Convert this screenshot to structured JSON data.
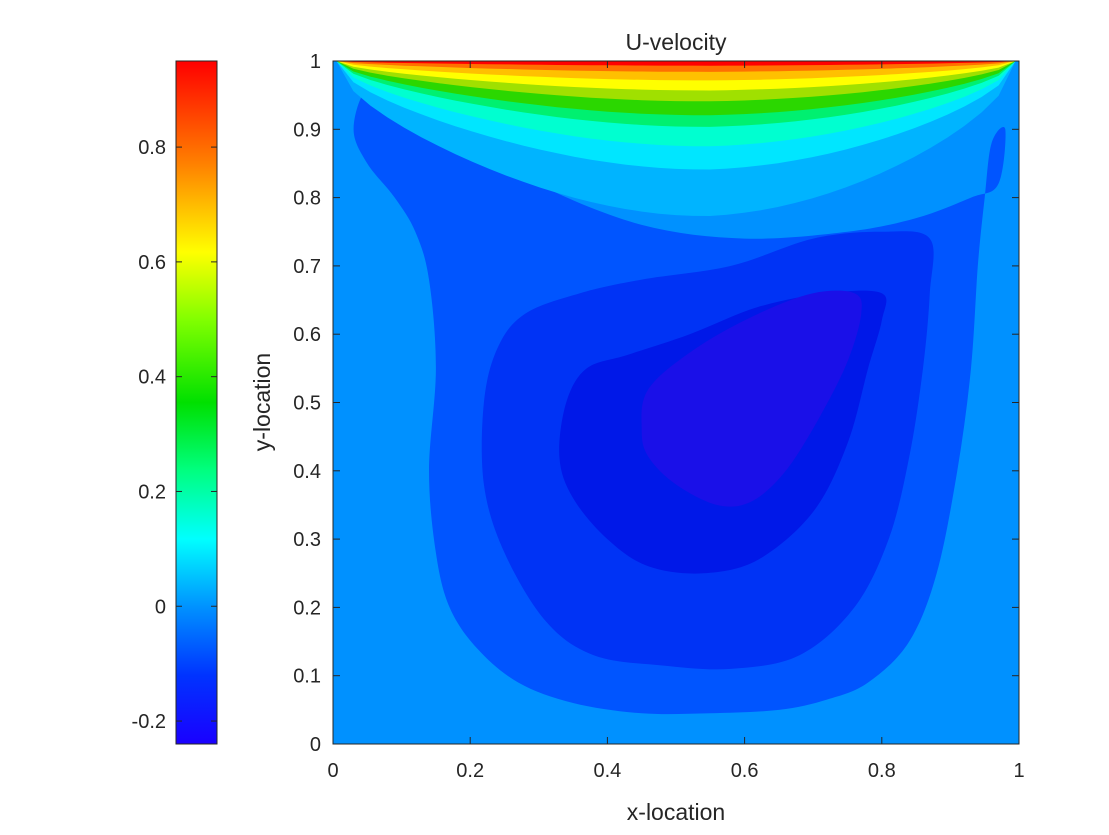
{
  "chart_data": {
    "type": "heatmap",
    "subtype": "filled-contour",
    "title": "U-velocity",
    "xlabel": "x-location",
    "ylabel": "y-location",
    "xlim": [
      0,
      1
    ],
    "ylim": [
      0,
      1
    ],
    "xticks": [
      "0",
      "0.2",
      "0.4",
      "0.6",
      "0.8",
      "1"
    ],
    "yticks": [
      "0",
      "0.1",
      "0.2",
      "0.3",
      "0.4",
      "0.5",
      "0.6",
      "0.7",
      "0.8",
      "0.9",
      "1"
    ],
    "grid": false,
    "colorbar": {
      "placement": "left",
      "colormap": "jet",
      "clim": [
        -0.24,
        0.95
      ],
      "ticks": [
        "-0.2",
        "0",
        "0.2",
        "0.4",
        "0.6",
        "0.8"
      ]
    },
    "field": {
      "description_values": {
        "background_level": 0.0,
        "vortex_center": [
          0.58,
          0.5
        ],
        "vortex_min": -0.22,
        "lid_value_at_y1": 0.95
      },
      "regions": [
        {
          "level": -0.05,
          "color": "#0055ff",
          "polygon": [
            [
              0.12,
              0.75
            ],
            [
              0.14,
              0.68
            ],
            [
              0.15,
              0.55
            ],
            [
              0.14,
              0.4
            ],
            [
              0.15,
              0.28
            ],
            [
              0.17,
              0.2
            ],
            [
              0.21,
              0.14
            ],
            [
              0.27,
              0.09
            ],
            [
              0.35,
              0.06
            ],
            [
              0.45,
              0.045
            ],
            [
              0.55,
              0.045
            ],
            [
              0.65,
              0.05
            ],
            [
              0.72,
              0.065
            ],
            [
              0.78,
              0.09
            ],
            [
              0.84,
              0.15
            ],
            [
              0.88,
              0.25
            ],
            [
              0.91,
              0.4
            ],
            [
              0.93,
              0.55
            ],
            [
              0.94,
              0.7
            ],
            [
              0.95,
              0.8
            ],
            [
              0.96,
              0.88
            ],
            [
              0.98,
              0.9
            ],
            [
              0.97,
              0.82
            ],
            [
              0.93,
              0.8
            ],
            [
              0.85,
              0.77
            ],
            [
              0.75,
              0.75
            ],
            [
              0.6,
              0.74
            ],
            [
              0.45,
              0.76
            ],
            [
              0.3,
              0.82
            ],
            [
              0.25,
              0.87
            ],
            [
              0.18,
              0.93
            ],
            [
              0.1,
              0.97
            ],
            [
              0.05,
              0.96
            ],
            [
              0.03,
              0.9
            ],
            [
              0.05,
              0.85
            ],
            [
              0.09,
              0.8
            ]
          ]
        },
        {
          "level": -0.1,
          "color": "#0033f5",
          "polygon": [
            [
              0.28,
              0.63
            ],
            [
              0.24,
              0.58
            ],
            [
              0.22,
              0.5
            ],
            [
              0.22,
              0.38
            ],
            [
              0.25,
              0.28
            ],
            [
              0.31,
              0.18
            ],
            [
              0.38,
              0.13
            ],
            [
              0.48,
              0.115
            ],
            [
              0.58,
              0.11
            ],
            [
              0.68,
              0.13
            ],
            [
              0.76,
              0.2
            ],
            [
              0.81,
              0.3
            ],
            [
              0.84,
              0.42
            ],
            [
              0.86,
              0.55
            ],
            [
              0.87,
              0.66
            ],
            [
              0.87,
              0.74
            ],
            [
              0.8,
              0.75
            ],
            [
              0.7,
              0.74
            ],
            [
              0.58,
              0.7
            ],
            [
              0.45,
              0.68
            ],
            [
              0.36,
              0.66
            ]
          ]
        },
        {
          "level": -0.15,
          "color": "#0018e8",
          "polygon": [
            [
              0.37,
              0.55
            ],
            [
              0.34,
              0.5
            ],
            [
              0.33,
              0.42
            ],
            [
              0.35,
              0.36
            ],
            [
              0.4,
              0.3
            ],
            [
              0.46,
              0.26
            ],
            [
              0.54,
              0.25
            ],
            [
              0.62,
              0.27
            ],
            [
              0.7,
              0.34
            ],
            [
              0.75,
              0.44
            ],
            [
              0.78,
              0.55
            ],
            [
              0.8,
              0.62
            ],
            [
              0.8,
              0.66
            ],
            [
              0.72,
              0.66
            ],
            [
              0.62,
              0.64
            ],
            [
              0.52,
              0.6
            ],
            [
              0.43,
              0.57
            ]
          ]
        },
        {
          "level": -0.2,
          "color": "#1a10e8",
          "polygon": [
            [
              0.46,
              0.52
            ],
            [
              0.45,
              0.46
            ],
            [
              0.46,
              0.42
            ],
            [
              0.5,
              0.38
            ],
            [
              0.56,
              0.35
            ],
            [
              0.61,
              0.355
            ],
            [
              0.66,
              0.4
            ],
            [
              0.71,
              0.48
            ],
            [
              0.75,
              0.56
            ],
            [
              0.77,
              0.63
            ],
            [
              0.76,
              0.66
            ],
            [
              0.7,
              0.66
            ],
            [
              0.62,
              0.63
            ],
            [
              0.53,
              0.58
            ]
          ]
        }
      ],
      "lid_bands": [
        {
          "level": 0.05,
          "color": "#00b4ff",
          "depth": 0.2
        },
        {
          "level": 0.15,
          "color": "#00e6ff",
          "depth": 0.14
        },
        {
          "level": 0.25,
          "color": "#00ffd0",
          "depth": 0.11
        },
        {
          "level": 0.35,
          "color": "#00f070",
          "depth": 0.085
        },
        {
          "level": 0.45,
          "color": "#2bd700",
          "depth": 0.07
        },
        {
          "level": 0.55,
          "color": "#a0e000",
          "depth": 0.052
        },
        {
          "level": 0.65,
          "color": "#ffff00",
          "depth": 0.038
        },
        {
          "level": 0.75,
          "color": "#ffc000",
          "depth": 0.025
        },
        {
          "level": 0.85,
          "color": "#ff7000",
          "depth": 0.014
        },
        {
          "level": 0.95,
          "color": "#ff0000",
          "depth": 0.006
        }
      ]
    }
  },
  "colors": {
    "background_fill": "#0091ff",
    "axis": "#262626"
  }
}
